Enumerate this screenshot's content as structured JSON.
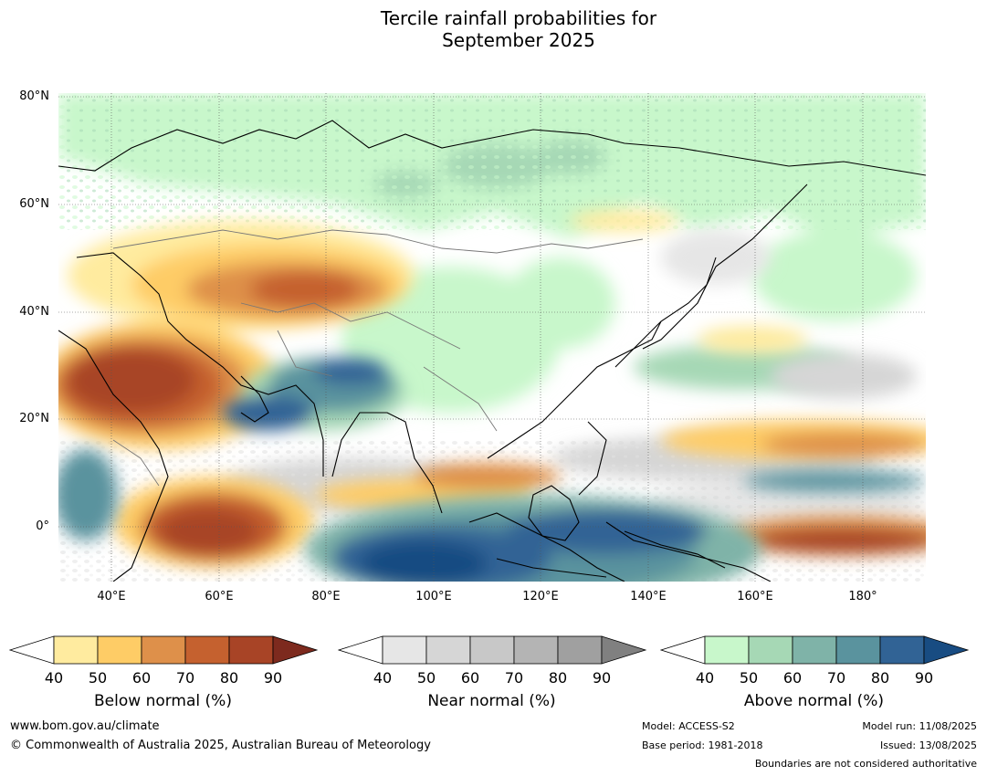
{
  "title_line1": "Tercile rainfall probabilities for",
  "title_line2": "September 2025",
  "map": {
    "lat_labels": [
      "80°N",
      "60°N",
      "40°N",
      "20°N",
      "0°"
    ],
    "lon_labels": [
      "40°E",
      "60°E",
      "80°E",
      "100°E",
      "120°E",
      "140°E",
      "160°E",
      "180°"
    ],
    "lon_range": [
      30,
      191
    ],
    "lat_range": [
      -10,
      81
    ]
  },
  "colorbars": [
    {
      "title": "Below normal (%)",
      "ticks": [
        "40",
        "50",
        "60",
        "70",
        "80",
        "90"
      ],
      "colors": [
        "#ffeb9f",
        "#fecc66",
        "#de904a",
        "#c5612f",
        "#a84426",
        "#7d2a1e"
      ]
    },
    {
      "title": "Near normal (%)",
      "ticks": [
        "40",
        "50",
        "60",
        "70",
        "80",
        "90"
      ],
      "colors": [
        "#e6e6e6",
        "#d6d6d6",
        "#c8c8c8",
        "#b4b4b4",
        "#a0a0a0",
        "#808080"
      ]
    },
    {
      "title": "Above normal (%)",
      "ticks": [
        "40",
        "50",
        "60",
        "70",
        "80",
        "90"
      ],
      "colors": [
        "#c8f7cb",
        "#a6d8b5",
        "#7fb3a8",
        "#5a939e",
        "#316395",
        "#184c82"
      ]
    }
  ],
  "footer": {
    "website": "www.bom.gov.au/climate",
    "copyright": "© Commonwealth of Australia 2025, Australian Bureau of Meteorology",
    "model": "Model: ACCESS-S2",
    "base_period": "Base period: 1981-2018",
    "model_run": "Model run: 11/08/2025",
    "issued": "Issued: 13/08/2025",
    "disclaimer": "Boundaries are not considered authoritative"
  }
}
